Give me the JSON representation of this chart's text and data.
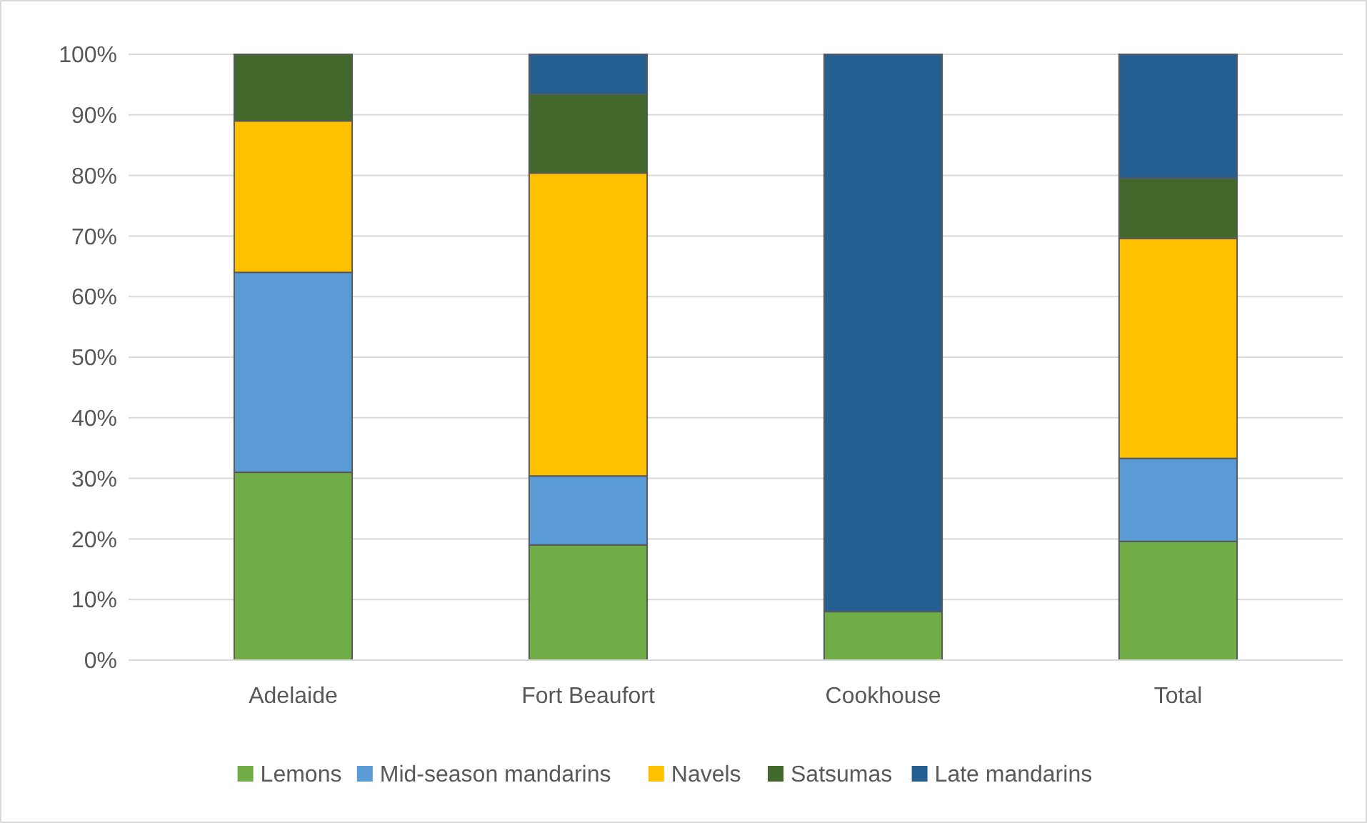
{
  "chart_data": {
    "type": "bar",
    "stacked": true,
    "categories": [
      "Adelaide",
      "Fort Beaufort",
      "Cookhouse",
      "Total"
    ],
    "series": [
      {
        "name": "Lemons",
        "color": "#70ad47",
        "values": [
          31,
          19,
          8,
          19.6
        ]
      },
      {
        "name": "Mid-season mandarins",
        "color": "#5b9bd5",
        "values": [
          33,
          11.4,
          0,
          13.7
        ]
      },
      {
        "name": "Navels",
        "color": "#ffc000",
        "values": [
          25,
          50,
          0,
          36.3
        ]
      },
      {
        "name": "Satsumas",
        "color": "#43682b",
        "values": [
          11,
          13,
          0,
          9.9
        ]
      },
      {
        "name": "Late mandarins",
        "color": "#255e91",
        "values": [
          0,
          6.6,
          92,
          20.5
        ]
      }
    ],
    "ylim": [
      0,
      100
    ],
    "yticks": [
      {
        "value": 0,
        "label": "0%"
      },
      {
        "value": 10,
        "label": "10%"
      },
      {
        "value": 20,
        "label": "20%"
      },
      {
        "value": 30,
        "label": "30%"
      },
      {
        "value": 40,
        "label": "40%"
      },
      {
        "value": 50,
        "label": "50%"
      },
      {
        "value": 60,
        "label": "60%"
      },
      {
        "value": 70,
        "label": "70%"
      },
      {
        "value": 80,
        "label": "80%"
      },
      {
        "value": 90,
        "label": "90%"
      },
      {
        "value": 100,
        "label": "100%"
      }
    ],
    "grid": "y",
    "legend": "bottom"
  }
}
